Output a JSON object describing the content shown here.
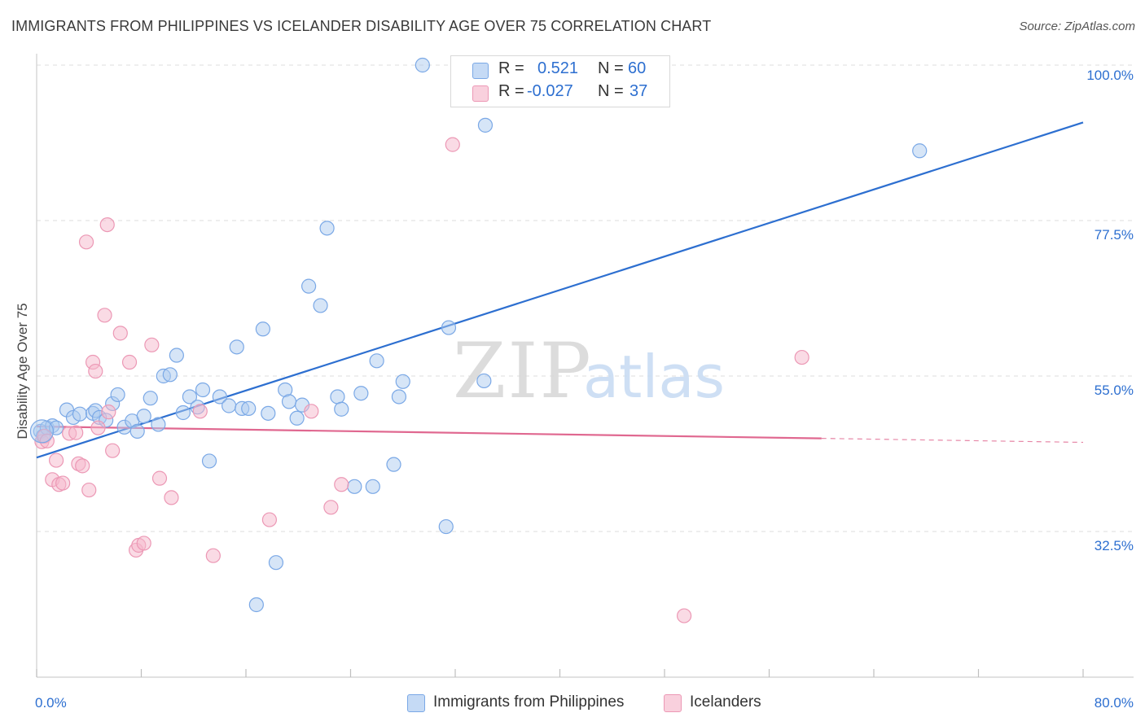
{
  "title": "IMMIGRANTS FROM PHILIPPINES VS ICELANDER DISABILITY AGE OVER 75 CORRELATION CHART",
  "source": "Source: ZipAtlas.com",
  "watermark": {
    "zip": "ZIP",
    "atlas": "atlas"
  },
  "colors": {
    "blue": "#2d6fd0",
    "blue_fill": "#aecbf0",
    "pink": "#e06890",
    "pink_fill": "#f5b8cc",
    "grid": "#dddddd",
    "axis_text": "#2d6fd0"
  },
  "legend": {
    "rows": [
      {
        "r_label": "R =",
        "r_value": "0.521",
        "n_label": "N =",
        "n_value": "60",
        "series": "blue"
      },
      {
        "r_label": "R =",
        "r_value": "-0.027",
        "n_label": "N =",
        "n_value": "37",
        "series": "pink"
      }
    ]
  },
  "bottom_legend": {
    "items": [
      {
        "label": "Immigrants from Philippines",
        "series": "blue"
      },
      {
        "label": "Icelanders",
        "series": "pink"
      }
    ]
  },
  "chart_data": {
    "type": "scatter",
    "title": "IMMIGRANTS FROM PHILIPPINES VS ICELANDER DISABILITY AGE OVER 75 CORRELATION CHART",
    "xlabel": "",
    "ylabel": "Disability Age Over 75",
    "xlim": [
      0,
      80
    ],
    "ylim": [
      13,
      102
    ],
    "x_tick_labels": [
      "0.0%",
      "80.0%"
    ],
    "y_tick_labels": [
      "32.5%",
      "55.0%",
      "77.5%",
      "100.0%"
    ],
    "y_tick_values": [
      32.5,
      55.0,
      77.5,
      100.0
    ],
    "grid": true,
    "legend_position": "top-center",
    "series": [
      {
        "name": "Immigrants from Philippines",
        "color": "#2d6fd0",
        "trend": {
          "x": [
            0,
            80
          ],
          "y": [
            43.2,
            91.7
          ],
          "dashed_from_x": null
        },
        "points": [
          [
            0.3,
            47.0
          ],
          [
            0.5,
            46.3
          ],
          [
            0.8,
            47.5
          ],
          [
            1.2,
            47.8
          ],
          [
            1.5,
            47.5
          ],
          [
            2.3,
            50.1
          ],
          [
            2.8,
            49.0
          ],
          [
            3.3,
            49.5
          ],
          [
            4.3,
            49.6
          ],
          [
            4.5,
            50.0
          ],
          [
            4.8,
            49.0
          ],
          [
            5.3,
            48.6
          ],
          [
            5.8,
            51.0
          ],
          [
            6.2,
            52.3
          ],
          [
            6.7,
            47.6
          ],
          [
            7.3,
            48.5
          ],
          [
            7.7,
            47.0
          ],
          [
            8.2,
            49.2
          ],
          [
            8.7,
            51.8
          ],
          [
            9.3,
            48.0
          ],
          [
            9.7,
            55.0
          ],
          [
            10.2,
            55.2
          ],
          [
            10.7,
            58.0
          ],
          [
            11.2,
            49.7
          ],
          [
            11.7,
            52.0
          ],
          [
            12.3,
            50.5
          ],
          [
            12.7,
            53.0
          ],
          [
            13.2,
            42.7
          ],
          [
            14.0,
            52.0
          ],
          [
            14.7,
            50.7
          ],
          [
            15.3,
            59.2
          ],
          [
            15.7,
            50.3
          ],
          [
            16.2,
            50.3
          ],
          [
            16.8,
            21.9
          ],
          [
            17.3,
            61.8
          ],
          [
            17.7,
            49.6
          ],
          [
            18.3,
            28.0
          ],
          [
            19.0,
            53.0
          ],
          [
            19.3,
            51.3
          ],
          [
            19.9,
            48.9
          ],
          [
            20.3,
            50.8
          ],
          [
            20.8,
            68.0
          ],
          [
            21.7,
            65.2
          ],
          [
            22.2,
            76.4
          ],
          [
            23.0,
            52.0
          ],
          [
            23.3,
            50.2
          ],
          [
            24.3,
            39.0
          ],
          [
            24.8,
            52.5
          ],
          [
            25.7,
            39.0
          ],
          [
            26.0,
            57.2
          ],
          [
            27.3,
            42.2
          ],
          [
            27.7,
            52.0
          ],
          [
            28.0,
            54.2
          ],
          [
            29.5,
            100.0
          ],
          [
            31.3,
            33.2
          ],
          [
            31.5,
            62.0
          ],
          [
            34.2,
            54.3
          ],
          [
            34.3,
            91.3
          ],
          [
            47.5,
            100.0
          ],
          [
            67.5,
            87.6
          ]
        ]
      },
      {
        "name": "Icelanders",
        "color": "#e06890",
        "trend": {
          "x": [
            0,
            80
          ],
          "y": [
            47.7,
            45.4
          ],
          "dashed_from_x": 60
        },
        "points": [
          [
            0.4,
            45.5
          ],
          [
            0.6,
            46.3
          ],
          [
            0.8,
            45.6
          ],
          [
            1.2,
            40.0
          ],
          [
            1.5,
            42.8
          ],
          [
            1.7,
            39.3
          ],
          [
            2.0,
            39.5
          ],
          [
            2.5,
            46.7
          ],
          [
            3.0,
            46.8
          ],
          [
            3.2,
            42.3
          ],
          [
            3.5,
            42.0
          ],
          [
            3.8,
            74.4
          ],
          [
            4.0,
            38.5
          ],
          [
            4.3,
            57.0
          ],
          [
            4.5,
            55.7
          ],
          [
            4.7,
            47.5
          ],
          [
            5.2,
            63.8
          ],
          [
            5.5,
            49.8
          ],
          [
            5.4,
            76.9
          ],
          [
            5.8,
            44.2
          ],
          [
            6.4,
            61.2
          ],
          [
            7.1,
            57.0
          ],
          [
            7.6,
            29.8
          ],
          [
            7.8,
            30.5
          ],
          [
            8.2,
            30.8
          ],
          [
            8.8,
            59.5
          ],
          [
            9.4,
            40.2
          ],
          [
            10.3,
            37.4
          ],
          [
            12.5,
            49.9
          ],
          [
            13.5,
            29.0
          ],
          [
            17.8,
            34.2
          ],
          [
            21.0,
            49.9
          ],
          [
            22.5,
            36.0
          ],
          [
            23.3,
            39.3
          ],
          [
            31.8,
            88.5
          ],
          [
            49.5,
            20.3
          ],
          [
            58.5,
            57.7
          ]
        ]
      }
    ]
  }
}
